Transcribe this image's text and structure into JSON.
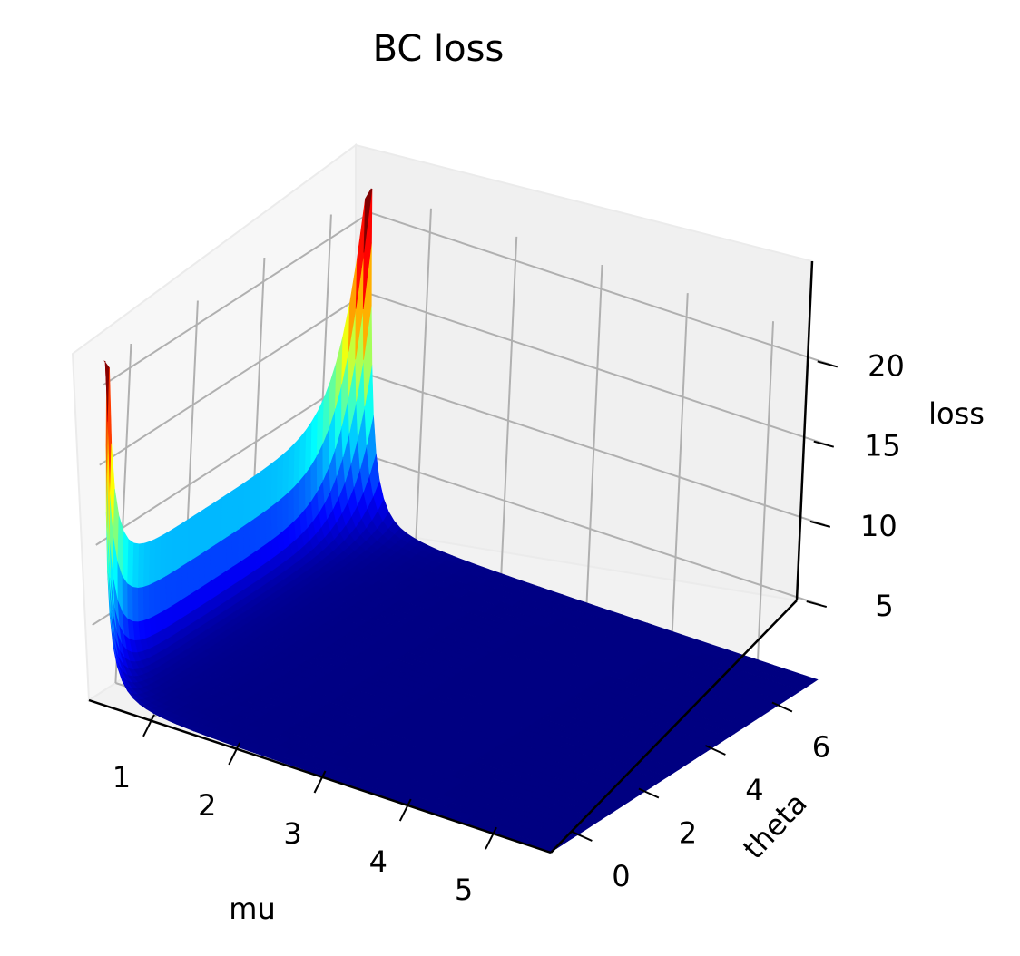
{
  "chart_data": {
    "type": "surface",
    "title": "BC loss",
    "xlabel": "mu",
    "ylabel": "theta",
    "zlabel": "loss",
    "x_range": [
      0.3,
      5.7
    ],
    "y_range": [
      -0.8,
      7.2
    ],
    "z_range": [
      0.3,
      21.5
    ],
    "x_ticks": [
      1,
      2,
      3,
      4,
      5
    ],
    "y_ticks": [
      0,
      2,
      4,
      6
    ],
    "z_ticks": [
      5,
      10,
      15,
      20
    ],
    "colormap": "jet",
    "grid": true,
    "peaks": [
      {
        "mu": 0.35,
        "theta": -0.8,
        "loss": 21.5
      },
      {
        "mu": 0.35,
        "theta": 7.2,
        "loss": 19.0
      }
    ],
    "floor_loss": 0.3
  }
}
